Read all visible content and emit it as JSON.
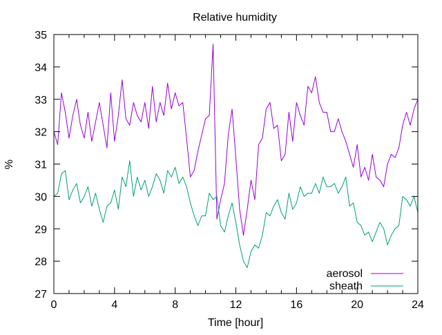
{
  "chart_data": {
    "type": "line",
    "title": "Relative humidity",
    "xlabel": "Time [hour]",
    "ylabel": "%",
    "xlim": [
      0,
      24
    ],
    "ylim": [
      27,
      35
    ],
    "xticks": [
      0,
      4,
      8,
      12,
      16,
      20,
      24
    ],
    "yticks": [
      27,
      28,
      29,
      30,
      31,
      32,
      33,
      34,
      35
    ],
    "grid": false,
    "legend_position": "bottom-right",
    "series": [
      {
        "name": "aerosol",
        "color": "#9400d3",
        "x": [
          0.0,
          0.25,
          0.5,
          0.75,
          1.0,
          1.25,
          1.5,
          1.75,
          2.0,
          2.25,
          2.5,
          2.75,
          3.0,
          3.25,
          3.5,
          3.75,
          4.0,
          4.25,
          4.5,
          4.75,
          5.0,
          5.25,
          5.5,
          5.75,
          6.0,
          6.25,
          6.5,
          6.75,
          7.0,
          7.25,
          7.5,
          7.75,
          8.0,
          8.25,
          8.5,
          8.75,
          9.0,
          9.25,
          9.5,
          9.75,
          10.0,
          10.25,
          10.5,
          10.75,
          11.0,
          11.25,
          11.5,
          11.75,
          12.0,
          12.25,
          12.5,
          12.75,
          13.0,
          13.25,
          13.5,
          13.75,
          14.0,
          14.25,
          14.5,
          14.75,
          15.0,
          15.25,
          15.5,
          15.75,
          16.0,
          16.25,
          16.5,
          16.75,
          17.0,
          17.25,
          17.5,
          17.75,
          18.0,
          18.25,
          18.5,
          18.75,
          19.0,
          19.25,
          19.5,
          19.75,
          20.0,
          20.25,
          20.5,
          20.75,
          21.0,
          21.25,
          21.5,
          21.75,
          22.0,
          22.25,
          22.5,
          22.75,
          23.0,
          23.25,
          23.5,
          23.75,
          24.0
        ],
        "values": [
          32.0,
          31.6,
          33.2,
          32.6,
          31.8,
          32.5,
          33.0,
          32.2,
          31.8,
          32.6,
          31.7,
          32.3,
          32.9,
          32.2,
          31.5,
          33.2,
          31.7,
          32.5,
          33.6,
          32.4,
          32.2,
          32.9,
          32.5,
          32.3,
          32.9,
          32.1,
          33.4,
          32.3,
          32.9,
          32.5,
          33.5,
          32.7,
          33.2,
          32.8,
          32.9,
          31.8,
          30.6,
          30.8,
          31.4,
          31.9,
          32.4,
          32.5,
          34.7,
          29.3,
          29.9,
          30.4,
          31.9,
          32.7,
          31.2,
          29.6,
          28.8,
          29.6,
          30.5,
          29.9,
          31.6,
          31.8,
          32.7,
          32.9,
          32.1,
          32.2,
          31.1,
          31.3,
          32.6,
          31.7,
          32.9,
          32.5,
          32.2,
          33.4,
          33.2,
          33.7,
          32.9,
          32.6,
          32.6,
          32.0,
          32.0,
          32.4,
          32.0,
          31.7,
          31.3,
          30.9,
          31.6,
          30.6,
          30.9,
          30.5,
          31.3,
          30.6,
          30.5,
          30.3,
          31.0,
          31.3,
          31.2,
          31.5,
          32.2,
          32.6,
          32.2,
          32.7,
          33.0
        ]
      },
      {
        "name": "sheath",
        "color": "#009e73",
        "x": [
          0.0,
          0.25,
          0.5,
          0.75,
          1.0,
          1.25,
          1.5,
          1.75,
          2.0,
          2.25,
          2.5,
          2.75,
          3.0,
          3.25,
          3.5,
          3.75,
          4.0,
          4.25,
          4.5,
          4.75,
          5.0,
          5.25,
          5.5,
          5.75,
          6.0,
          6.25,
          6.5,
          6.75,
          7.0,
          7.25,
          7.5,
          7.75,
          8.0,
          8.25,
          8.5,
          8.75,
          9.0,
          9.25,
          9.5,
          9.75,
          10.0,
          10.25,
          10.5,
          10.75,
          11.0,
          11.25,
          11.5,
          11.75,
          12.0,
          12.25,
          12.5,
          12.75,
          13.0,
          13.25,
          13.5,
          13.75,
          14.0,
          14.25,
          14.5,
          14.75,
          15.0,
          15.25,
          15.5,
          15.75,
          16.0,
          16.25,
          16.5,
          16.75,
          17.0,
          17.25,
          17.5,
          17.75,
          18.0,
          18.25,
          18.5,
          18.75,
          19.0,
          19.25,
          19.5,
          19.75,
          20.0,
          20.25,
          20.5,
          20.75,
          21.0,
          21.25,
          21.5,
          21.75,
          22.0,
          22.25,
          22.5,
          22.75,
          23.0,
          23.25,
          23.5,
          23.75,
          24.0
        ],
        "values": [
          30.0,
          30.1,
          30.7,
          30.8,
          29.9,
          30.2,
          30.4,
          29.8,
          30.0,
          30.3,
          29.7,
          30.1,
          29.6,
          29.2,
          29.7,
          29.8,
          30.2,
          29.6,
          30.6,
          30.3,
          31.1,
          30.0,
          30.6,
          30.2,
          30.5,
          30.0,
          30.3,
          30.7,
          30.5,
          30.1,
          30.8,
          30.6,
          30.9,
          30.4,
          30.6,
          30.3,
          29.8,
          29.4,
          29.1,
          29.4,
          29.4,
          30.1,
          29.9,
          30.0,
          29.1,
          28.9,
          29.4,
          29.8,
          29.2,
          28.5,
          28.0,
          27.8,
          28.3,
          28.5,
          28.4,
          28.8,
          29.5,
          29.4,
          29.7,
          29.9,
          29.5,
          29.3,
          30.1,
          29.6,
          29.8,
          30.3,
          30.0,
          30.1,
          30.1,
          30.4,
          30.1,
          30.6,
          30.3,
          30.3,
          30.4,
          30.1,
          30.3,
          30.6,
          29.7,
          29.8,
          29.2,
          29.1,
          28.8,
          28.9,
          28.6,
          28.9,
          29.2,
          29.0,
          28.5,
          28.8,
          29.0,
          29.1,
          30.0,
          29.9,
          29.7,
          30.0,
          29.5
        ]
      }
    ]
  }
}
